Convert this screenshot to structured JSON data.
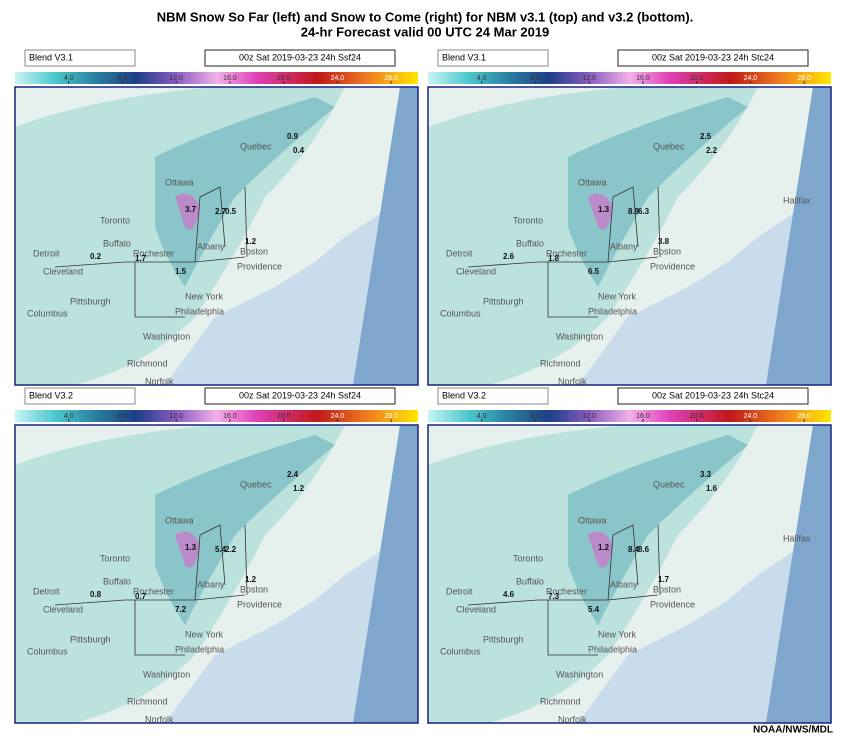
{
  "header": {
    "title_line1": "NBM Snow So Far (left) and Snow to Come (right) for NBM v3.1 (top) and v3.2 (bottom).",
    "title_line2": "24-hr Forecast valid 00 UTC 24 Mar 2019"
  },
  "colorbar": {
    "clim": [
      0,
      30
    ],
    "ticks": [
      {
        "value": 4,
        "label": "4.0"
      },
      {
        "value": 8,
        "label": "8.0"
      },
      {
        "value": 12,
        "label": "12.0"
      },
      {
        "value": 16,
        "label": "16.0"
      },
      {
        "value": 20,
        "label": "20.0"
      },
      {
        "value": 24,
        "label": "24.0"
      },
      {
        "value": 28,
        "label": "28.0"
      }
    ]
  },
  "cities": [
    "Quebec",
    "Ottawa",
    "Toronto",
    "Halifax",
    "Detroit",
    "Buffalo",
    "Rochester",
    "Cleveland",
    "Albany",
    "Boston",
    "Providence",
    "New York",
    "Pittsburgh",
    "Philadelphia",
    "Columbus",
    "Washington",
    "Richmond",
    "Norfolk"
  ],
  "panels": [
    {
      "model": "Blend V3.1",
      "product": "00z Sat 2019-03-23 24h Ssf24",
      "station_labels": [
        "0.9",
        "0.4",
        "3.7",
        "1.5",
        "0.5",
        "2.7",
        "1.2",
        "1.7",
        "0.2"
      ]
    },
    {
      "model": "Blend V3.1",
      "product": "00z Sat 2019-03-23 24h Stc24",
      "station_labels": [
        "2.5",
        "2.2",
        "1.3",
        "6.5",
        "6.3",
        "8.9",
        "3.8",
        "1.8",
        "2.6"
      ]
    },
    {
      "model": "Blend V3.2",
      "product": "00z Sat 2019-03-23 24h Ssf24",
      "station_labels": [
        "2.4",
        "1.2",
        "1.3",
        "7.2",
        "2.2",
        "5.4",
        "1.2",
        "0.7",
        "0.8"
      ]
    },
    {
      "model": "Blend V3.2",
      "product": "00z Sat 2019-03-23 24h Stc24",
      "station_labels": [
        "3.3",
        "1.6",
        "1.2",
        "5.4",
        "8.6",
        "8.4",
        "1.7",
        "7.3",
        "4.6"
      ]
    }
  ],
  "footer": {
    "credit": "NOAA/NWS/MDL"
  }
}
